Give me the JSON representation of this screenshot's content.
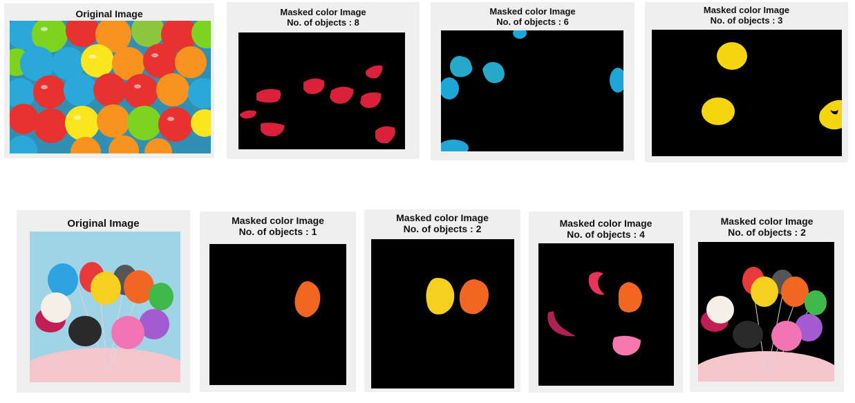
{
  "row1": {
    "panels": [
      {
        "title": "Original Image"
      },
      {
        "title": "Masked color Image",
        "subtitle": "No. of objects : 8"
      },
      {
        "title": "Masked color Image",
        "subtitle": "No. of objects : 6"
      },
      {
        "title": "Masked color Image",
        "subtitle": "No. of objects : 3"
      }
    ]
  },
  "row2": {
    "panels": [
      {
        "title": "Original Image"
      },
      {
        "title": "Masked color Image",
        "subtitle": "No. of objects : 1"
      },
      {
        "title": "Masked color Image",
        "subtitle": "No. of objects : 2"
      },
      {
        "title": "Masked color Image",
        "subtitle": "No. of objects : 4"
      },
      {
        "title": "Masked color Image",
        "subtitle": "No. of objects : 2"
      }
    ]
  }
}
